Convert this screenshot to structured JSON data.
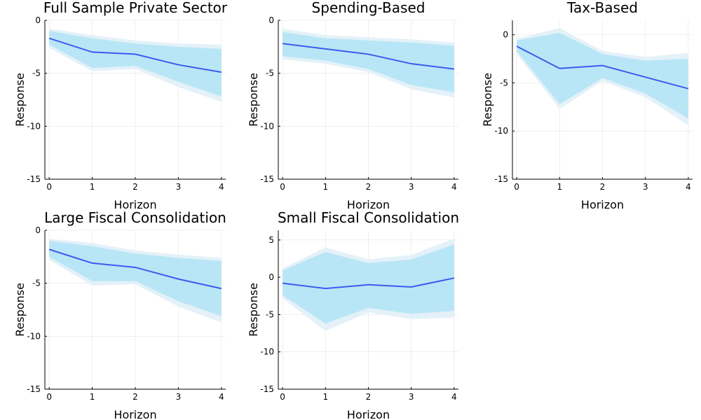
{
  "colors": {
    "band_outer": "#e4f1f8",
    "band_inner": "#b9e6f6",
    "line": "#3a5cf0"
  },
  "chart_data": [
    {
      "type": "line",
      "title": "Full Sample Private Sector",
      "xlabel": "Horizon",
      "ylabel": "Response",
      "x": [
        0,
        1,
        2,
        3,
        4
      ],
      "ylim": [
        -15,
        0
      ],
      "yticks": [
        0,
        -5,
        -10,
        -15
      ],
      "xticks": [
        0,
        1,
        2,
        3,
        4
      ],
      "series": [
        {
          "role": "median",
          "values": [
            -1.7,
            -3.0,
            -3.2,
            -4.2,
            -4.9
          ]
        },
        {
          "role": "band-outer",
          "upper": [
            -0.8,
            -1.4,
            -1.9,
            -2.2,
            -2.3
          ],
          "lower": [
            -2.6,
            -4.8,
            -4.6,
            -6.3,
            -7.7
          ]
        },
        {
          "role": "band-inner",
          "upper": [
            -1.0,
            -1.7,
            -2.2,
            -2.5,
            -2.7
          ],
          "lower": [
            -2.3,
            -4.5,
            -4.3,
            -5.8,
            -7.2
          ]
        }
      ]
    },
    {
      "type": "line",
      "title": "Spending-Based",
      "xlabel": "Horizon",
      "ylabel": "Response",
      "x": [
        0,
        1,
        2,
        3,
        4
      ],
      "ylim": [
        -15,
        0
      ],
      "yticks": [
        0,
        -5,
        -10,
        -15
      ],
      "xticks": [
        0,
        1,
        2,
        3,
        4
      ],
      "series": [
        {
          "role": "median",
          "values": [
            -2.2,
            -2.7,
            -3.2,
            -4.1,
            -4.6
          ]
        },
        {
          "role": "band-outer",
          "upper": [
            -0.8,
            -1.4,
            -1.6,
            -1.8,
            -2.1
          ],
          "lower": [
            -3.7,
            -4.1,
            -4.9,
            -6.5,
            -7.3
          ]
        },
        {
          "role": "band-inner",
          "upper": [
            -1.1,
            -1.7,
            -1.9,
            -2.1,
            -2.4
          ],
          "lower": [
            -3.4,
            -3.8,
            -4.6,
            -6.1,
            -6.8
          ]
        }
      ]
    },
    {
      "type": "line",
      "title": "Tax-Based",
      "xlabel": "Horizon",
      "ylabel": "Response",
      "x": [
        0,
        1,
        2,
        3,
        4
      ],
      "ylim": [
        -15,
        1.5
      ],
      "yticks": [
        0,
        -5,
        -10,
        -15
      ],
      "xticks": [
        0,
        1,
        2,
        3,
        4
      ],
      "series": [
        {
          "role": "median",
          "values": [
            -1.2,
            -3.5,
            -3.2,
            -4.4,
            -5.6
          ]
        },
        {
          "role": "band-outer",
          "upper": [
            -0.4,
            0.7,
            -1.7,
            -2.3,
            -1.9
          ],
          "lower": [
            -2.0,
            -7.7,
            -4.8,
            -6.5,
            -9.4
          ]
        },
        {
          "role": "band-inner",
          "upper": [
            -0.6,
            0.2,
            -2.0,
            -2.7,
            -2.5
          ],
          "lower": [
            -1.7,
            -7.2,
            -4.5,
            -6.1,
            -8.7
          ]
        }
      ]
    },
    {
      "type": "line",
      "title": "Large Fiscal Consolidation",
      "xlabel": "Horizon",
      "ylabel": "Response",
      "x": [
        0,
        1,
        2,
        3,
        4
      ],
      "ylim": [
        -15,
        0
      ],
      "yticks": [
        0,
        -5,
        -10,
        -15
      ],
      "xticks": [
        0,
        1,
        2,
        3,
        4
      ],
      "series": [
        {
          "role": "median",
          "values": [
            -1.8,
            -3.1,
            -3.5,
            -4.6,
            -5.5
          ]
        },
        {
          "role": "band-outer",
          "upper": [
            -0.8,
            -1.2,
            -1.9,
            -2.3,
            -2.6
          ],
          "lower": [
            -2.8,
            -5.2,
            -5.1,
            -7.2,
            -8.7
          ]
        },
        {
          "role": "band-inner",
          "upper": [
            -1.0,
            -1.5,
            -2.2,
            -2.6,
            -2.9
          ],
          "lower": [
            -2.5,
            -4.8,
            -4.8,
            -6.7,
            -8.1
          ]
        }
      ]
    },
    {
      "type": "line",
      "title": "Small Fiscal Consolidation",
      "xlabel": "Horizon",
      "ylabel": "Response",
      "x": [
        0,
        1,
        2,
        3,
        4
      ],
      "ylim": [
        -15,
        6.3
      ],
      "yticks": [
        5,
        0,
        -5,
        -10,
        -15
      ],
      "xticks": [
        0,
        1,
        2,
        3,
        4
      ],
      "series": [
        {
          "role": "median",
          "values": [
            -0.8,
            -1.5,
            -1.0,
            -1.3,
            -0.1
          ]
        },
        {
          "role": "band-outer",
          "upper": [
            1.2,
            4.0,
            2.4,
            3.0,
            5.2
          ],
          "lower": [
            -2.8,
            -7.2,
            -4.7,
            -5.6,
            -5.4
          ]
        },
        {
          "role": "band-inner",
          "upper": [
            0.9,
            3.4,
            1.9,
            2.4,
            4.4
          ],
          "lower": [
            -2.4,
            -6.2,
            -4.1,
            -4.9,
            -4.5
          ]
        }
      ]
    }
  ]
}
